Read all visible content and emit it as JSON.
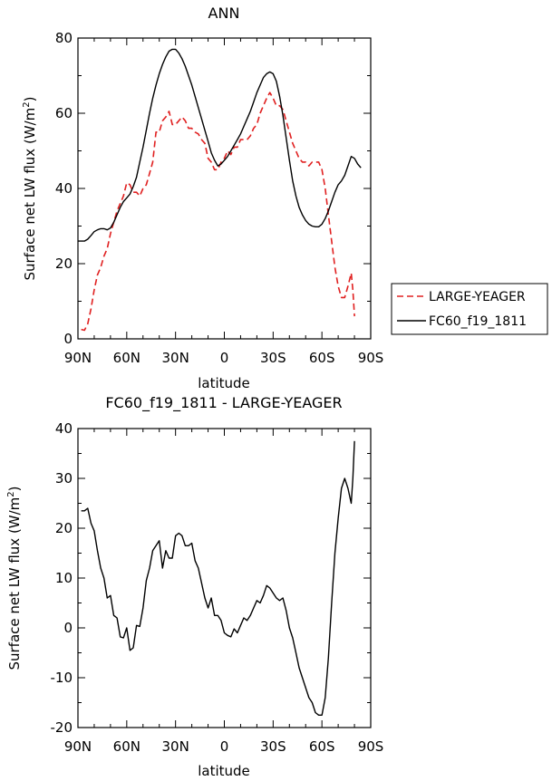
{
  "chart_data": [
    {
      "type": "line",
      "title": "ANN",
      "xlabel": "latitude",
      "ylabel": "Surface net LW flux (W/m",
      "ylabel_sup": "2",
      "ylabel_close": ")",
      "xlim": [
        90,
        -90
      ],
      "ylim": [
        0,
        80
      ],
      "xticks": [
        90,
        60,
        30,
        0,
        -30,
        -60,
        -90
      ],
      "xtick_labels": [
        "90N",
        "60N",
        "30N",
        "0",
        "30S",
        "60S",
        "90S"
      ],
      "yticks": [
        0,
        20,
        40,
        60,
        80
      ],
      "ytick_labels": [
        "0",
        "20",
        "40",
        "60",
        "80"
      ],
      "legend_position": "right",
      "series": [
        {
          "name": "LARGE-YEAGER",
          "color": "#e02020",
          "dash": "dashed",
          "points": [
            [
              88,
              2.5
            ],
            [
              86,
              2.3
            ],
            [
              84,
              4
            ],
            [
              82,
              8
            ],
            [
              80,
              13
            ],
            [
              78,
              17
            ],
            [
              76,
              19
            ],
            [
              74,
              22
            ],
            [
              72,
              24
            ],
            [
              70,
              28
            ],
            [
              68,
              31
            ],
            [
              66,
              34
            ],
            [
              64,
              36
            ],
            [
              62,
              38
            ],
            [
              60,
              41.5
            ],
            [
              58,
              41
            ],
            [
              56,
              39
            ],
            [
              54,
              39
            ],
            [
              52,
              38
            ],
            [
              50,
              40
            ],
            [
              48,
              41
            ],
            [
              46,
              44
            ],
            [
              44,
              47
            ],
            [
              42,
              55
            ],
            [
              40,
              55
            ],
            [
              38,
              58
            ],
            [
              36,
              59
            ],
            [
              34,
              60.5
            ],
            [
              32,
              57
            ],
            [
              30,
              57
            ],
            [
              28,
              58
            ],
            [
              26,
              59
            ],
            [
              24,
              58
            ],
            [
              22,
              56
            ],
            [
              20,
              56
            ],
            [
              18,
              55
            ],
            [
              16,
              54.5
            ],
            [
              14,
              53
            ],
            [
              12,
              52
            ],
            [
              10,
              48
            ],
            [
              8,
              47
            ],
            [
              6,
              45
            ],
            [
              4,
              45
            ],
            [
              2,
              47
            ],
            [
              0,
              48
            ],
            [
              -2,
              50
            ],
            [
              -4,
              49
            ],
            [
              -6,
              51
            ],
            [
              -8,
              51
            ],
            [
              -10,
              53
            ],
            [
              -12,
              53
            ],
            [
              -14,
              53
            ],
            [
              -16,
              54
            ],
            [
              -18,
              56
            ],
            [
              -20,
              57
            ],
            [
              -22,
              60
            ],
            [
              -24,
              62
            ],
            [
              -26,
              64
            ],
            [
              -28,
              65.5
            ],
            [
              -30,
              64
            ],
            [
              -32,
              62
            ],
            [
              -34,
              62
            ],
            [
              -36,
              61
            ],
            [
              -38,
              58
            ],
            [
              -40,
              55
            ],
            [
              -42,
              52
            ],
            [
              -44,
              50
            ],
            [
              -46,
              48
            ],
            [
              -48,
              47
            ],
            [
              -50,
              47
            ],
            [
              -52,
              46
            ],
            [
              -54,
              47
            ],
            [
              -56,
              47
            ],
            [
              -58,
              47
            ],
            [
              -60,
              45
            ],
            [
              -62,
              40
            ],
            [
              -64,
              33
            ],
            [
              -66,
              26
            ],
            [
              -68,
              19
            ],
            [
              -70,
              14
            ],
            [
              -72,
              11
            ],
            [
              -74,
              11
            ],
            [
              -76,
              14
            ],
            [
              -78,
              17.5
            ],
            [
              -79,
              13
            ],
            [
              -80,
              6
            ]
          ]
        },
        {
          "name": "FC60_f19_1811",
          "color": "#000000",
          "dash": "solid",
          "points": [
            [
              90,
              26
            ],
            [
              86,
              26
            ],
            [
              84,
              26.5
            ],
            [
              82,
              27.5
            ],
            [
              80,
              28.5
            ],
            [
              78,
              29
            ],
            [
              76,
              29.3
            ],
            [
              74,
              29.3
            ],
            [
              72,
              29
            ],
            [
              70,
              29.5
            ],
            [
              68,
              31
            ],
            [
              66,
              33
            ],
            [
              64,
              35
            ],
            [
              62,
              36.5
            ],
            [
              60,
              37.5
            ],
            [
              58,
              38.5
            ],
            [
              56,
              40.5
            ],
            [
              54,
              43
            ],
            [
              52,
              47
            ],
            [
              50,
              51
            ],
            [
              48,
              55.5
            ],
            [
              46,
              60
            ],
            [
              44,
              64
            ],
            [
              42,
              67.5
            ],
            [
              40,
              70.5
            ],
            [
              38,
              73
            ],
            [
              36,
              75
            ],
            [
              34,
              76.5
            ],
            [
              32,
              77
            ],
            [
              30,
              77
            ],
            [
              28,
              76
            ],
            [
              26,
              74.5
            ],
            [
              24,
              72.5
            ],
            [
              22,
              70
            ],
            [
              20,
              67.5
            ],
            [
              18,
              64.5
            ],
            [
              16,
              61.5
            ],
            [
              14,
              58.5
            ],
            [
              12,
              55.5
            ],
            [
              10,
              52.5
            ],
            [
              8,
              49.5
            ],
            [
              6,
              47.5
            ],
            [
              4,
              46
            ],
            [
              2,
              46.5
            ],
            [
              0,
              47.5
            ],
            [
              -2,
              48.5
            ],
            [
              -4,
              50
            ],
            [
              -6,
              51.5
            ],
            [
              -8,
              53
            ],
            [
              -10,
              54.5
            ],
            [
              -12,
              56.5
            ],
            [
              -14,
              58.5
            ],
            [
              -16,
              60.5
            ],
            [
              -18,
              63
            ],
            [
              -20,
              65.5
            ],
            [
              -22,
              67.5
            ],
            [
              -24,
              69.5
            ],
            [
              -26,
              70.5
            ],
            [
              -28,
              71
            ],
            [
              -30,
              70.5
            ],
            [
              -32,
              68.5
            ],
            [
              -34,
              64.5
            ],
            [
              -36,
              59.5
            ],
            [
              -38,
              53.5
            ],
            [
              -40,
              47.5
            ],
            [
              -42,
              42
            ],
            [
              -44,
              38
            ],
            [
              -46,
              35
            ],
            [
              -48,
              33
            ],
            [
              -50,
              31.5
            ],
            [
              -52,
              30.5
            ],
            [
              -54,
              30
            ],
            [
              -56,
              29.8
            ],
            [
              -58,
              29.8
            ],
            [
              -60,
              30.5
            ],
            [
              -62,
              32
            ],
            [
              -64,
              34
            ],
            [
              -66,
              36.5
            ],
            [
              -68,
              39
            ],
            [
              -70,
              41
            ],
            [
              -72,
              42
            ],
            [
              -74,
              43.5
            ],
            [
              -76,
              46
            ],
            [
              -78,
              48.5
            ],
            [
              -80,
              48
            ],
            [
              -82,
              46.5
            ],
            [
              -84,
              45.5
            ]
          ]
        }
      ]
    },
    {
      "type": "line",
      "title": "FC60_f19_1811 - LARGE-YEAGER",
      "xlabel": "latitude",
      "ylabel": "Surface net LW flux (W/m",
      "ylabel_sup": "2",
      "ylabel_close": ")",
      "xlim": [
        90,
        -90
      ],
      "ylim": [
        -20,
        40
      ],
      "xticks": [
        90,
        60,
        30,
        0,
        -30,
        -60,
        -90
      ],
      "xtick_labels": [
        "90N",
        "60N",
        "30N",
        "0",
        "30S",
        "60S",
        "90S"
      ],
      "yticks": [
        -20,
        -10,
        0,
        10,
        20,
        30,
        40
      ],
      "ytick_labels": [
        "-20",
        "-10",
        "0",
        "10",
        "20",
        "30",
        "40"
      ],
      "series": [
        {
          "color": "#000000",
          "dash": "solid",
          "points": [
            [
              88,
              23.5
            ],
            [
              86,
              23.5
            ],
            [
              84,
              24
            ],
            [
              82,
              21
            ],
            [
              80,
              19.5
            ],
            [
              78,
              15.5
            ],
            [
              76,
              12
            ],
            [
              74,
              10
            ],
            [
              72,
              6
            ],
            [
              70,
              6.5
            ],
            [
              68,
              2.5
            ],
            [
              66,
              2
            ],
            [
              64,
              -1.8
            ],
            [
              62,
              -2
            ],
            [
              60,
              0
            ],
            [
              58,
              -4.5
            ],
            [
              56,
              -4
            ],
            [
              54,
              0.5
            ],
            [
              52,
              0.3
            ],
            [
              50,
              4
            ],
            [
              48,
              9.5
            ],
            [
              46,
              12
            ],
            [
              44,
              15.5
            ],
            [
              42,
              16.5
            ],
            [
              40,
              17.5
            ],
            [
              38,
              12
            ],
            [
              36,
              15.5
            ],
            [
              34,
              14
            ],
            [
              32,
              14
            ],
            [
              30,
              18.5
            ],
            [
              28,
              19
            ],
            [
              26,
              18.5
            ],
            [
              24,
              16.5
            ],
            [
              22,
              16.5
            ],
            [
              20,
              17
            ],
            [
              18,
              13.5
            ],
            [
              16,
              12
            ],
            [
              14,
              9
            ],
            [
              12,
              6
            ],
            [
              10,
              4
            ],
            [
              8,
              6
            ],
            [
              6,
              2.5
            ],
            [
              4,
              2.5
            ],
            [
              2,
              1.5
            ],
            [
              0,
              -1
            ],
            [
              -2,
              -1.5
            ],
            [
              -4,
              -1.8
            ],
            [
              -6,
              -0.2
            ],
            [
              -8,
              -1
            ],
            [
              -10,
              0.5
            ],
            [
              -12,
              2
            ],
            [
              -14,
              1.5
            ],
            [
              -16,
              2.5
            ],
            [
              -18,
              4
            ],
            [
              -20,
              5.5
            ],
            [
              -22,
              5
            ],
            [
              -24,
              6.5
            ],
            [
              -26,
              8.5
            ],
            [
              -28,
              8
            ],
            [
              -30,
              7
            ],
            [
              -32,
              6
            ],
            [
              -34,
              5.5
            ],
            [
              -36,
              6
            ],
            [
              -38,
              3.5
            ],
            [
              -40,
              0
            ],
            [
              -42,
              -2
            ],
            [
              -44,
              -5
            ],
            [
              -46,
              -8
            ],
            [
              -48,
              -10
            ],
            [
              -50,
              -12
            ],
            [
              -52,
              -14
            ],
            [
              -54,
              -15
            ],
            [
              -56,
              -17
            ],
            [
              -58,
              -17.5
            ],
            [
              -60,
              -17.5
            ],
            [
              -62,
              -14
            ],
            [
              -64,
              -6
            ],
            [
              -66,
              5
            ],
            [
              -68,
              15
            ],
            [
              -70,
              22
            ],
            [
              -72,
              28
            ],
            [
              -74,
              30
            ],
            [
              -76,
              28
            ],
            [
              -78,
              25
            ],
            [
              -79,
              30
            ],
            [
              -80,
              37.5
            ]
          ]
        }
      ]
    }
  ]
}
